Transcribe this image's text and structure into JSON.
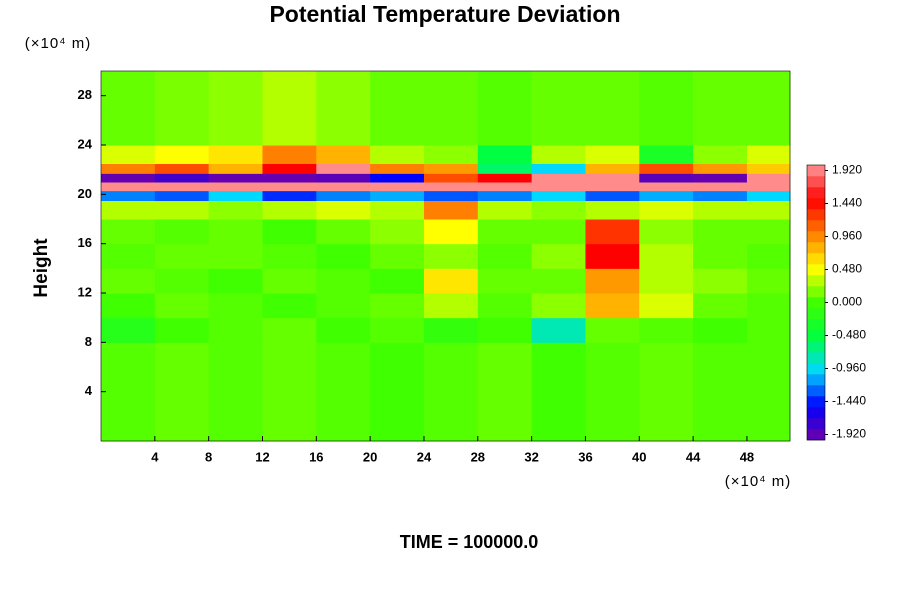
{
  "chart_data": {
    "type": "heatmap",
    "title": "Potential Temperature Deviation",
    "y_label": "Height",
    "y_unit": "(×10⁴ m)",
    "x_unit": "(×10⁴ m)",
    "footer": "TIME = 100000.0",
    "xlim": [
      0,
      51.2
    ],
    "ylim": [
      0,
      30
    ],
    "xticks": [
      4,
      8,
      12,
      16,
      20,
      24,
      28,
      32,
      36,
      40,
      44,
      48
    ],
    "yticks": [
      4,
      8,
      12,
      16,
      20,
      24,
      28
    ],
    "x_edges": [
      0,
      4,
      8,
      12,
      16,
      20,
      24,
      28,
      32,
      36,
      40,
      44,
      48,
      51.2
    ],
    "y_edges": [
      0,
      8,
      10,
      12,
      14,
      16,
      18,
      19.5,
      20.3,
      21,
      21.7,
      22.5,
      24,
      30
    ],
    "z": [
      [
        0.05,
        0.1,
        0.05,
        0.1,
        0.05,
        0,
        0.05,
        0.1,
        0,
        0.05,
        0.1,
        0.05,
        0.05
      ],
      [
        -0.2,
        0,
        0.05,
        0.1,
        0,
        0.05,
        -0.1,
        0,
        -0.8,
        0.1,
        0.05,
        0,
        0.05
      ],
      [
        0,
        0.1,
        0.05,
        0,
        0.05,
        0.1,
        0.3,
        0.05,
        0.2,
        0.8,
        0.4,
        0.1,
        0.05
      ],
      [
        0.1,
        0.05,
        0,
        0.1,
        0.05,
        0,
        0.6,
        0.1,
        0.1,
        0.9,
        0.3,
        0.2,
        0.1
      ],
      [
        0.05,
        0.1,
        0.1,
        0.05,
        0,
        0.1,
        0.2,
        0.05,
        0.2,
        1.5,
        0.3,
        0.1,
        0.05
      ],
      [
        0.1,
        0.05,
        0.1,
        0,
        0.1,
        0.2,
        0.5,
        0.1,
        0.1,
        1.3,
        0.2,
        0.1,
        0.1
      ],
      [
        0.3,
        0.3,
        0.2,
        0.3,
        0.4,
        0.3,
        1.0,
        0.3,
        0.2,
        0.3,
        0.4,
        0.3,
        0.3
      ],
      [
        -1.2,
        -1.3,
        -1.0,
        -1.4,
        -1.2,
        -1.1,
        -1.3,
        -1.2,
        -1.0,
        -1.3,
        -1.1,
        -1.2,
        -1.0
      ],
      [
        1.95,
        1.95,
        1.95,
        1.95,
        1.95,
        1.95,
        1.95,
        1.95,
        1.95,
        1.95,
        1.95,
        1.95,
        1.95
      ],
      [
        -1.95,
        -1.8,
        -1.95,
        -1.95,
        -1.9,
        -1.5,
        1.2,
        1.5,
        1.95,
        1.95,
        -1.9,
        -1.95,
        1.95
      ],
      [
        1.0,
        1.2,
        0.8,
        1.5,
        1.95,
        1.0,
        0.9,
        -0.6,
        -1.0,
        0.8,
        1.2,
        0.9,
        0.7
      ],
      [
        0.4,
        0.5,
        0.6,
        1.0,
        0.8,
        0.3,
        0.2,
        -0.5,
        0.3,
        0.4,
        -0.3,
        0.2,
        0.4
      ],
      [
        0.1,
        0.15,
        0.2,
        0.3,
        0.2,
        0.1,
        0.1,
        0.05,
        0.1,
        0.1,
        0.05,
        0.1,
        0.1
      ]
    ],
    "zlim": [
      -2,
      2
    ],
    "zticks": [
      {
        "value": 1.92,
        "label": "1.920"
      },
      {
        "value": 1.44,
        "label": "1.440"
      },
      {
        "value": 0.96,
        "label": "0.960"
      },
      {
        "value": 0.48,
        "label": "0.480"
      },
      {
        "value": 0,
        "label": "0.000"
      },
      {
        "value": -0.48,
        "label": "-0.480"
      },
      {
        "value": -0.96,
        "label": "-0.960"
      },
      {
        "value": -1.44,
        "label": "-1.440"
      },
      {
        "value": -1.92,
        "label": "-1.920"
      }
    ],
    "colormap": [
      "#7000a8",
      "#0000ff",
      "#00d8ff",
      "#00ff40",
      "#40ff00",
      "#ffff00",
      "#ff8000",
      "#ff0000",
      "#ff9a9a"
    ]
  }
}
